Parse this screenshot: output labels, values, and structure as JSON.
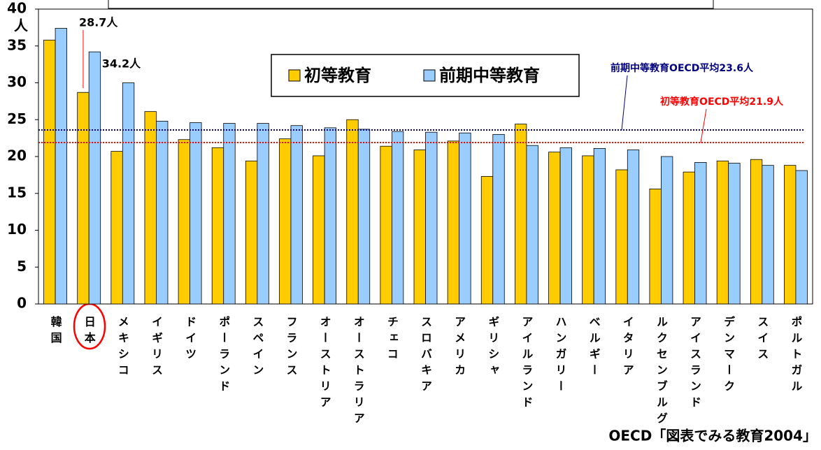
{
  "chart_data": {
    "type": "bar",
    "y_unit": "人",
    "categories": [
      "韓国",
      "日本",
      "メキシコ",
      "イギリス",
      "ドイツ",
      "ポーランド",
      "スペイン",
      "フランス",
      "オーストリア",
      "オーストラリア",
      "チェコ",
      "スロバキア",
      "アメリカ",
      "ギリシャ",
      "アイルランド",
      "ハンガリー",
      "ベルギー",
      "イタリア",
      "ルクセンブルグ",
      "アイスランド",
      "デンマーク",
      "スイス",
      "ポルトガル"
    ],
    "series": [
      {
        "name": "初等教育",
        "color": "#ffcc00",
        "values": [
          35.8,
          28.7,
          20.7,
          26.1,
          22.3,
          21.2,
          19.4,
          22.4,
          20.1,
          25.0,
          21.4,
          20.9,
          22.1,
          17.3,
          24.4,
          20.6,
          20.1,
          18.2,
          15.6,
          17.9,
          19.4,
          19.6,
          18.8
        ],
        "value_labels": [
          null,
          "28.7人",
          null,
          null,
          null,
          null,
          null,
          null,
          null,
          null,
          null,
          null,
          null,
          null,
          null,
          null,
          null,
          null,
          null,
          null,
          null,
          null,
          null
        ]
      },
      {
        "name": "前期中等教育",
        "color": "#99ccff",
        "values": [
          37.4,
          34.2,
          30.0,
          24.8,
          24.6,
          24.5,
          24.5,
          24.2,
          23.9,
          23.7,
          23.4,
          23.3,
          23.2,
          23.0,
          21.5,
          21.2,
          21.1,
          20.9,
          20.0,
          19.2,
          19.1,
          18.8,
          18.1
        ],
        "value_labels": [
          null,
          "34.2人",
          null,
          null,
          null,
          null,
          null,
          null,
          null,
          null,
          null,
          null,
          null,
          null,
          null,
          null,
          null,
          null,
          null,
          null,
          null,
          null,
          null
        ]
      }
    ],
    "reference_lines": [
      {
        "label": "前期中等教育OECD平均23.6人",
        "value": 23.6,
        "color": "#000080"
      },
      {
        "label": "初等教育OECD平均21.9人",
        "value": 21.9,
        "color": "#ff0000"
      }
    ],
    "ylim": [
      0,
      40
    ],
    "yticks": [
      0,
      5,
      10,
      15,
      20,
      25,
      30,
      35,
      40
    ],
    "source": "OECD「図表でみる教育2004」"
  }
}
